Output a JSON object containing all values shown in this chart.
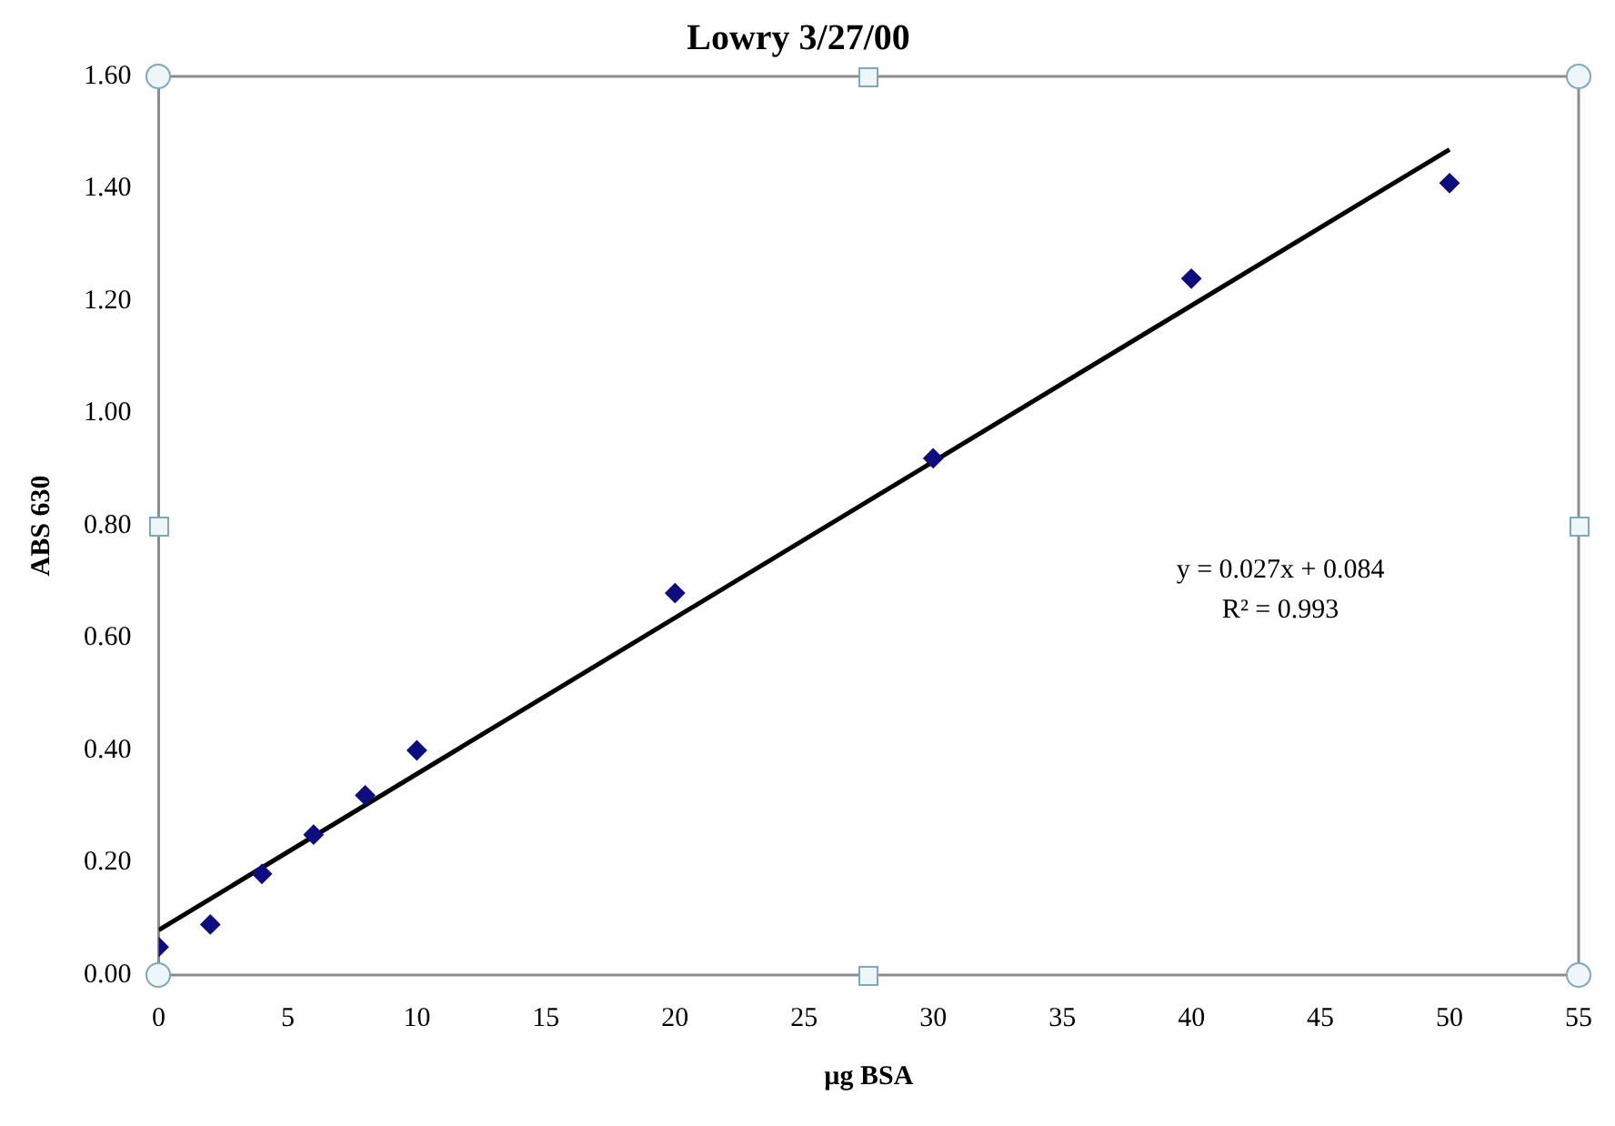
{
  "chart_data": {
    "type": "scatter",
    "title": "Lowry 3/27/00",
    "xlabel": "µg BSA",
    "ylabel": "ABS 630",
    "x": [
      0,
      2,
      4,
      6,
      8,
      10,
      20,
      30,
      40,
      50
    ],
    "series": [
      {
        "color": "#0d0d80",
        "values": [
          0.05,
          0.09,
          0.18,
          0.25,
          0.32,
          0.4,
          0.68,
          0.92,
          1.24,
          1.41
        ],
        "marker": "diamond"
      },
      {
        "type": "line",
        "color": "#000000",
        "x": [
          0,
          50
        ],
        "values": [
          0.08,
          1.47
        ],
        "marker": "none",
        "line_style": "solid"
      }
    ],
    "xlim": [
      0,
      55
    ],
    "xticks": [
      0,
      5,
      10,
      15,
      20,
      25,
      30,
      35,
      40,
      45,
      50,
      55
    ],
    "ylim": [
      0,
      1.6
    ],
    "yticks": [
      {
        "value": 0,
        "label": "0.00"
      },
      {
        "value": 0.2,
        "label": "0.20"
      },
      {
        "value": 0.4,
        "label": "0.40"
      },
      {
        "value": 0.6,
        "label": "0.60"
      },
      {
        "value": 0.8,
        "label": "0.80"
      },
      {
        "value": 1.0,
        "label": "1.00"
      },
      {
        "value": 1.2,
        "label": "1.20"
      },
      {
        "value": 1.4,
        "label": "1.40"
      },
      {
        "value": 1.6,
        "label": "1.60"
      }
    ],
    "annotations": [
      "y = 0.027x + 0.084",
      "R² = 0.993"
    ],
    "grid": false,
    "legend": false
  }
}
